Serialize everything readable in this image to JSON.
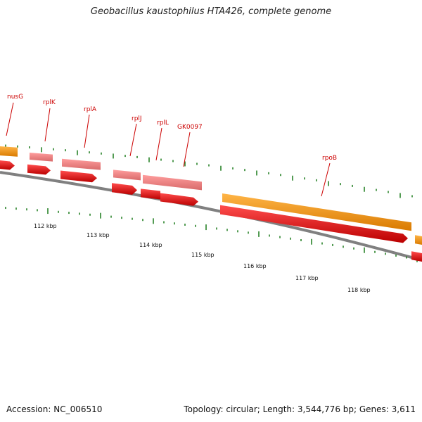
{
  "title": "Geobacillus kaustophilus HTA426, complete genome",
  "footer": {
    "accession": "Accession: NC_006510",
    "summary": "Topology: circular; Length: 3,544,776 bp; Genes: 3,611"
  },
  "scale_labels": [
    "112 kbp",
    "113 kbp",
    "114 kbp",
    "115 kbp",
    "116 kbp",
    "117 kbp",
    "118 kbp"
  ],
  "gene_labels": [
    "nusG",
    "rplK",
    "rplA",
    "rplJ",
    "rplL",
    "GK0097",
    "rpoB"
  ],
  "colors": {
    "cds": "#ee1111",
    "gene_light": "#f08080",
    "gene_orange": "#ff9a1a",
    "tick": "#1a7a1a",
    "label": "#cc0000",
    "backbone": "#777777"
  }
}
